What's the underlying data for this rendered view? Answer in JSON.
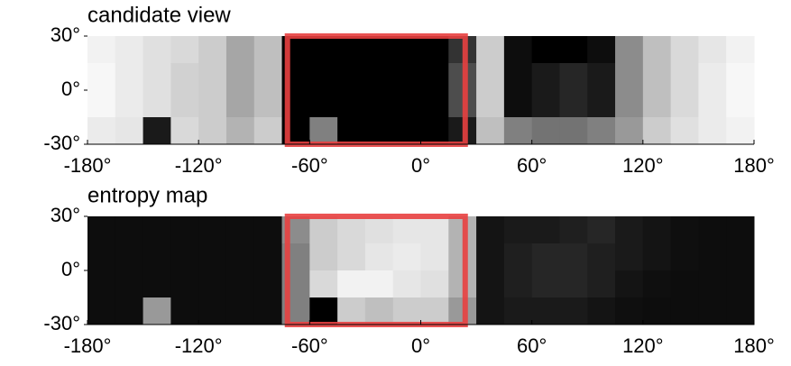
{
  "chart_data": [
    {
      "type": "heatmap",
      "title": "candidate view",
      "cmap": "gray",
      "zlim": [
        0,
        100
      ],
      "xlim": [
        -180,
        180
      ],
      "ylim": [
        -30,
        30
      ],
      "xticks": [
        {
          "value": -180,
          "label": "-180°"
        },
        {
          "value": -120,
          "label": "-120°"
        },
        {
          "value": -60,
          "label": "-60°"
        },
        {
          "value": 0,
          "label": "0°"
        },
        {
          "value": 60,
          "label": "60°"
        },
        {
          "value": 120,
          "label": "120°"
        },
        {
          "value": 180,
          "label": "180°"
        }
      ],
      "yticks": [
        {
          "value": 30,
          "label": "30°"
        },
        {
          "value": 0,
          "label": "0°"
        },
        {
          "value": -30,
          "label": "-30°"
        }
      ],
      "z": [
        [
          95,
          92,
          88,
          85,
          80,
          65,
          75,
          0,
          0,
          0,
          0,
          0,
          0,
          20,
          80,
          5,
          0,
          0,
          5,
          55,
          75,
          85,
          90,
          95
        ],
        [
          97,
          92,
          88,
          82,
          80,
          65,
          75,
          0,
          0,
          0,
          0,
          0,
          0,
          30,
          80,
          5,
          10,
          15,
          10,
          55,
          75,
          85,
          92,
          97
        ],
        [
          97,
          92,
          88,
          82,
          80,
          65,
          75,
          0,
          0,
          0,
          0,
          0,
          0,
          30,
          80,
          5,
          10,
          15,
          10,
          55,
          75,
          85,
          92,
          97
        ],
        [
          92,
          90,
          10,
          85,
          80,
          70,
          80,
          0,
          50,
          0,
          0,
          0,
          0,
          10,
          75,
          50,
          45,
          45,
          50,
          60,
          80,
          88,
          92,
          95
        ]
      ],
      "highlight": {
        "x": [
          -72,
          24
        ],
        "y": [
          -30,
          30
        ],
        "color": "#e84040"
      }
    },
    {
      "type": "heatmap",
      "title": "entropy map",
      "cmap": "gray",
      "zlim": [
        0,
        100
      ],
      "xlim": [
        -180,
        180
      ],
      "ylim": [
        -30,
        30
      ],
      "xticks": [
        {
          "value": -180,
          "label": "-180°"
        },
        {
          "value": -120,
          "label": "-120°"
        },
        {
          "value": -60,
          "label": "-60°"
        },
        {
          "value": 0,
          "label": "0°"
        },
        {
          "value": 60,
          "label": "60°"
        },
        {
          "value": 120,
          "label": "120°"
        },
        {
          "value": 180,
          "label": "180°"
        }
      ],
      "yticks": [
        {
          "value": 30,
          "label": "30°"
        },
        {
          "value": 0,
          "label": "0°"
        },
        {
          "value": -30,
          "label": "-30°"
        }
      ],
      "z": [
        [
          5,
          5,
          5,
          5,
          5,
          5,
          5,
          55,
          80,
          85,
          88,
          90,
          90,
          70,
          8,
          10,
          10,
          12,
          15,
          10,
          8,
          6,
          5,
          5
        ],
        [
          5,
          5,
          5,
          5,
          5,
          5,
          5,
          50,
          80,
          85,
          90,
          92,
          90,
          70,
          8,
          12,
          15,
          15,
          12,
          10,
          8,
          6,
          5,
          5
        ],
        [
          5,
          5,
          5,
          5,
          5,
          5,
          5,
          50,
          85,
          95,
          95,
          90,
          88,
          70,
          8,
          12,
          15,
          15,
          12,
          8,
          6,
          5,
          5,
          5
        ],
        [
          5,
          5,
          60,
          5,
          5,
          5,
          5,
          50,
          0,
          80,
          75,
          80,
          80,
          60,
          8,
          10,
          10,
          10,
          8,
          6,
          5,
          5,
          5,
          5
        ]
      ],
      "highlight": {
        "x": [
          -72,
          24
        ],
        "y": [
          -30,
          30
        ],
        "color": "#e84040"
      }
    }
  ]
}
